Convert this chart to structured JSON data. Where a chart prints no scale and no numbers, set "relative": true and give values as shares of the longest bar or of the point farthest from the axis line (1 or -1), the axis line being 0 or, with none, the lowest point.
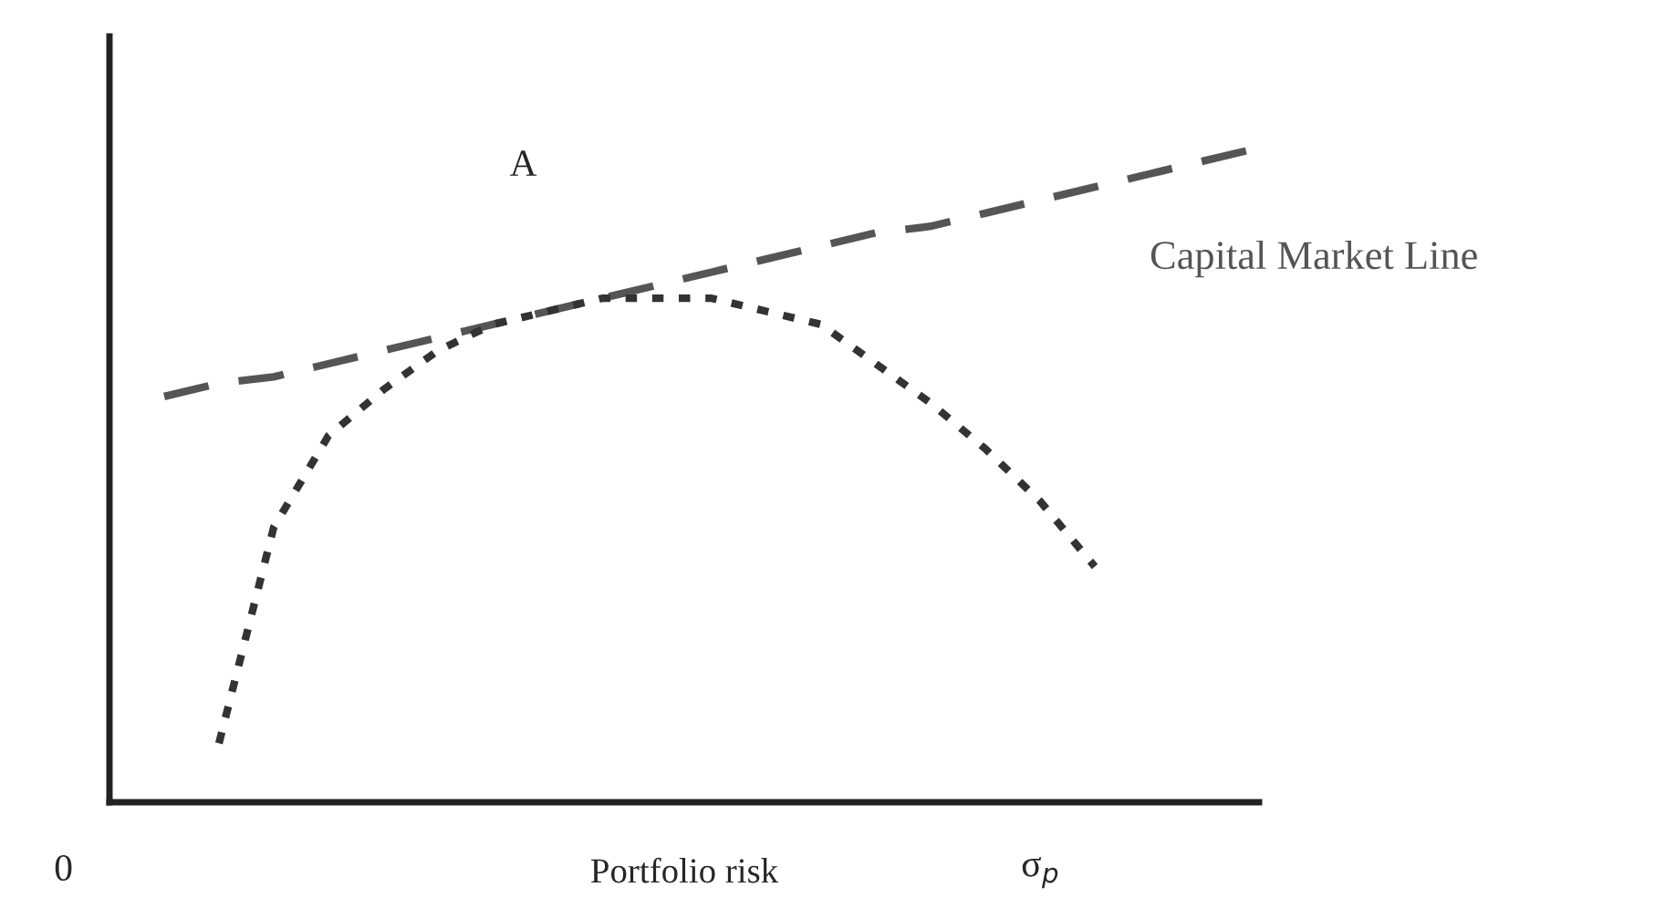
{
  "chart_data": {
    "type": "line",
    "relative": true,
    "xlabel": "Portfolio risk",
    "categories": [
      null,
      null,
      null,
      null,
      null,
      null,
      null,
      null,
      null,
      null,
      null,
      null,
      null,
      null,
      null,
      null,
      null,
      null,
      null,
      null,
      null,
      null
    ],
    "series": [
      {
        "name": "Capital Market Line",
        "color": "#555555",
        "line_style": "dashed",
        "values": [
          null,
          0.62,
          0.64,
          0.65,
          0.67,
          0.69,
          0.71,
          0.73,
          0.75,
          0.77,
          0.79,
          0.81,
          0.83,
          0.85,
          0.87,
          0.88,
          0.9,
          0.92,
          0.94,
          0.96,
          0.98,
          1.0
        ]
      },
      {
        "color": "#333333",
        "line_style": "dotted",
        "values": [
          null,
          null,
          0.09,
          0.42,
          0.56,
          0.63,
          0.69,
          0.73,
          0.75,
          0.77,
          0.77,
          0.77,
          0.75,
          0.73,
          0.67,
          0.61,
          0.54,
          0.46,
          0.36,
          null,
          null,
          null
        ]
      }
    ],
    "annotations": [
      "A",
      "σ$_{p}$",
      "0"
    ],
    "legend": false,
    "tick_labels": false
  }
}
